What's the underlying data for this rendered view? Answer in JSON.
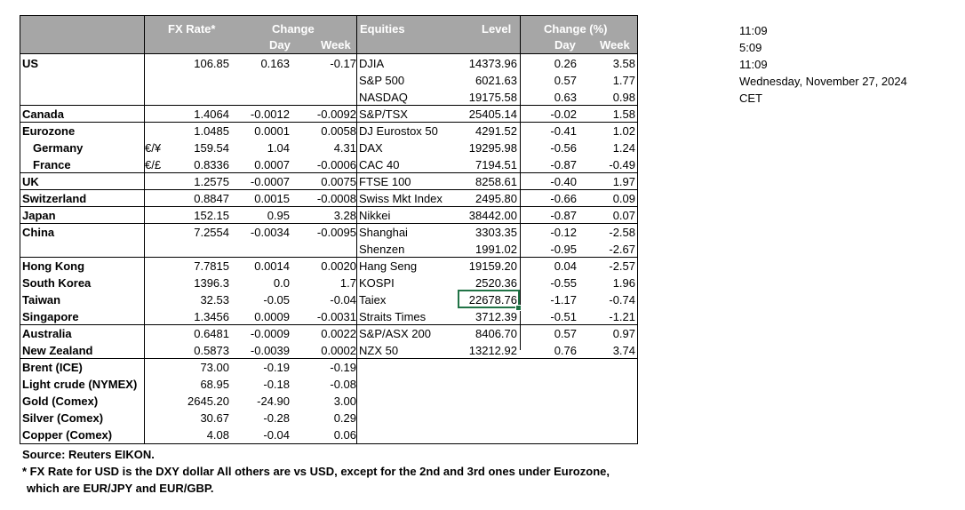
{
  "headers": {
    "fx_rate": "FX Rate*",
    "change": "Change",
    "day": "Day",
    "week": "Week",
    "equities": "Equities",
    "level": "Level",
    "change_pct": "Change (%)",
    "eq_day": "Day",
    "eq_week": "Week"
  },
  "rows": [
    {
      "name": "US",
      "cur": "",
      "rate": "106.85",
      "day": "0.163",
      "week": "-0.17",
      "eq": "DJIA",
      "level": "14373.96",
      "eqday": "0.26",
      "eqweek": "3.58"
    },
    {
      "name": "",
      "cur": "",
      "rate": "",
      "day": "",
      "week": "",
      "eq": "S&P 500",
      "level": "6021.63",
      "eqday": "0.57",
      "eqweek": "1.77"
    },
    {
      "name": "",
      "cur": "",
      "rate": "",
      "day": "",
      "week": "",
      "eq": "NASDAQ",
      "level": "19175.58",
      "eqday": "0.63",
      "eqweek": "0.98"
    },
    {
      "name": "Canada",
      "cur": "",
      "rate": "1.4064",
      "day": "-0.0012",
      "week": "-0.0092",
      "eq": "S&P/TSX",
      "level": "25405.14",
      "eqday": "-0.02",
      "eqweek": "1.58"
    },
    {
      "name": "Eurozone",
      "cur": "",
      "rate": "1.0485",
      "day": "0.0001",
      "week": "0.0058",
      "eq": "DJ Eurostox 50",
      "level": "4291.52",
      "eqday": "-0.41",
      "eqweek": "1.02"
    },
    {
      "name": "Germany",
      "cur": "€/¥",
      "rate": "159.54",
      "day": "1.04",
      "week": "4.31",
      "eq": "DAX",
      "level": "19295.98",
      "eqday": "-0.56",
      "eqweek": "1.24"
    },
    {
      "name": "France",
      "cur": "€/£",
      "rate": "0.8336",
      "day": "0.0007",
      "week": "-0.0006",
      "eq": "CAC 40",
      "level": "7194.51",
      "eqday": "-0.87",
      "eqweek": "-0.49"
    },
    {
      "name": "UK",
      "cur": "",
      "rate": "1.2575",
      "day": "-0.0007",
      "week": "0.0075",
      "eq": "FTSE 100",
      "level": "8258.61",
      "eqday": "-0.40",
      "eqweek": "1.97"
    },
    {
      "name": "Switzerland",
      "cur": "",
      "rate": "0.8847",
      "day": "0.0015",
      "week": "-0.0008",
      "eq": "Swiss Mkt Index",
      "level": "2495.80",
      "eqday": "-0.66",
      "eqweek": "0.09"
    },
    {
      "name": "Japan",
      "cur": "",
      "rate": "152.15",
      "day": "0.95",
      "week": "3.28",
      "eq": "Nikkei",
      "level": "38442.00",
      "eqday": "-0.87",
      "eqweek": "0.07"
    },
    {
      "name": "China",
      "cur": "",
      "rate": "7.2554",
      "day": "-0.0034",
      "week": "-0.0095",
      "eq": "Shanghai",
      "level": "3303.35",
      "eqday": "-0.12",
      "eqweek": "-2.58"
    },
    {
      "name": "",
      "cur": "",
      "rate": "",
      "day": "",
      "week": "",
      "eq": "Shenzen",
      "level": "1991.02",
      "eqday": "-0.95",
      "eqweek": "-2.67"
    },
    {
      "name": "Hong Kong",
      "cur": "",
      "rate": "7.7815",
      "day": "0.0014",
      "week": "0.0020",
      "eq": "Hang Seng",
      "level": "19159.20",
      "eqday": "0.04",
      "eqweek": "-2.57"
    },
    {
      "name": "South Korea",
      "cur": "",
      "rate": "1396.3",
      "day": "0.0",
      "week": "1.7",
      "eq": "KOSPI",
      "level": "2520.36",
      "eqday": "-0.55",
      "eqweek": "1.96"
    },
    {
      "name": "Taiwan",
      "cur": "",
      "rate": "32.53",
      "day": "-0.05",
      "week": "-0.04",
      "eq": "Taiex",
      "level": "22678.76",
      "eqday": "-1.17",
      "eqweek": "-0.74"
    },
    {
      "name": "Singapore",
      "cur": "",
      "rate": "1.3456",
      "day": "0.0009",
      "week": "-0.0031",
      "eq": "Straits Times",
      "level": "3712.39",
      "eqday": "-0.51",
      "eqweek": "-1.21"
    },
    {
      "name": "Australia",
      "cur": "",
      "rate": "0.6481",
      "day": "-0.0009",
      "week": "0.0022",
      "eq": "S&P/ASX  200",
      "level": "8406.70",
      "eqday": "0.57",
      "eqweek": "0.97"
    },
    {
      "name": "New Zealand",
      "cur": "",
      "rate": "0.5873",
      "day": "-0.0039",
      "week": "0.0002",
      "eq": "NZX 50",
      "level": "13212.92",
      "eqday": "0.76",
      "eqweek": "3.74"
    },
    {
      "name": "Brent (ICE)",
      "cur": "",
      "rate": "73.00",
      "day": "-0.19",
      "week": "-0.19",
      "eq": "",
      "level": "",
      "eqday": "",
      "eqweek": ""
    },
    {
      "name": "Light crude (NYMEX)",
      "cur": "",
      "rate": "68.95",
      "day": "-0.18",
      "week": "-0.08",
      "eq": "",
      "level": "",
      "eqday": "",
      "eqweek": ""
    },
    {
      "name": "Gold (Comex)",
      "cur": "",
      "rate": "2645.20",
      "day": "-24.90",
      "week": "3.00",
      "eq": "",
      "level": "",
      "eqday": "",
      "eqweek": ""
    },
    {
      "name": "Silver (Comex)",
      "cur": "",
      "rate": "30.67",
      "day": "-0.28",
      "week": "0.29",
      "eq": "",
      "level": "",
      "eqday": "",
      "eqweek": ""
    },
    {
      "name": "Copper (Comex)",
      "cur": "",
      "rate": "4.08",
      "day": "-0.04",
      "week": "0.06",
      "eq": "",
      "level": "",
      "eqday": "",
      "eqweek": ""
    }
  ],
  "side_info": [
    "11:09",
    "5:09",
    "11:09",
    "Wednesday, November 27, 2024",
    "CET"
  ],
  "notes": {
    "source": "Source:  Reuters EIKON.",
    "fx_note": "* FX Rate for USD is the DXY dollar  All others are vs USD, except for the 2nd and 3rd ones under Eurozone,",
    "fx_note2": "which are EUR/JPY and EUR/GBP."
  },
  "colors": {
    "header_bg": "#a6a6a6",
    "header_text": "#ffffff",
    "selection": "#217346"
  }
}
